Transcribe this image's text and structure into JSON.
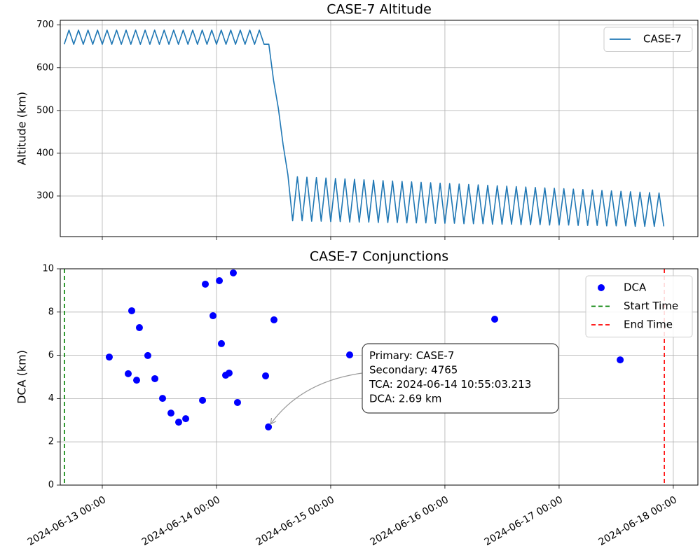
{
  "chart_data": [
    {
      "type": "line",
      "title": "CASE-7 Altitude",
      "y_label": "Altitude (km)",
      "x": [
        "2024-06-12 16:00",
        "2024-06-12 17:00",
        "2024-06-12 18:00",
        "2024-06-12 19:00",
        "2024-06-12 20:00",
        "2024-06-12 21:00",
        "2024-06-12 22:00",
        "2024-06-12 23:00",
        "2024-06-13 00:00",
        "2024-06-13 01:00",
        "2024-06-13 02:00",
        "2024-06-13 03:00",
        "2024-06-13 04:00",
        "2024-06-13 05:00",
        "2024-06-13 06:00",
        "2024-06-13 07:00",
        "2024-06-13 08:00",
        "2024-06-13 09:00",
        "2024-06-13 10:00",
        "2024-06-13 11:00",
        "2024-06-13 12:00",
        "2024-06-13 13:00",
        "2024-06-13 14:00",
        "2024-06-13 15:00",
        "2024-06-13 16:00",
        "2024-06-13 17:00",
        "2024-06-13 18:00",
        "2024-06-13 19:00",
        "2024-06-13 20:00",
        "2024-06-13 21:00",
        "2024-06-13 22:00",
        "2024-06-13 23:00",
        "2024-06-14 00:00",
        "2024-06-14 01:00",
        "2024-06-14 02:00",
        "2024-06-14 03:00",
        "2024-06-14 04:00",
        "2024-06-14 05:00",
        "2024-06-14 06:00",
        "2024-06-14 07:00",
        "2024-06-14 08:00",
        "2024-06-14 09:00",
        "2024-06-14 10:00",
        "2024-06-14 11:00",
        "2024-06-14 12:00",
        "2024-06-14 13:00",
        "2024-06-14 14:00",
        "2024-06-14 15:00",
        "2024-06-14 16:00",
        "2024-06-14 17:00",
        "2024-06-14 18:00",
        "2024-06-14 19:00",
        "2024-06-14 20:00",
        "2024-06-14 21:00",
        "2024-06-14 22:00",
        "2024-06-14 23:00",
        "2024-06-15 00:00",
        "2024-06-15 01:00",
        "2024-06-15 02:00",
        "2024-06-15 03:00",
        "2024-06-15 04:00",
        "2024-06-15 05:00",
        "2024-06-15 06:00",
        "2024-06-15 07:00",
        "2024-06-15 08:00",
        "2024-06-15 09:00",
        "2024-06-15 10:00",
        "2024-06-15 11:00",
        "2024-06-15 12:00",
        "2024-06-15 13:00",
        "2024-06-15 14:00",
        "2024-06-15 15:00",
        "2024-06-15 16:00",
        "2024-06-15 17:00",
        "2024-06-15 18:00",
        "2024-06-15 19:00",
        "2024-06-15 20:00",
        "2024-06-15 21:00",
        "2024-06-15 22:00",
        "2024-06-15 23:00",
        "2024-06-16 00:00",
        "2024-06-16 01:00",
        "2024-06-16 02:00",
        "2024-06-16 03:00",
        "2024-06-16 04:00",
        "2024-06-16 05:00",
        "2024-06-16 06:00",
        "2024-06-16 07:00",
        "2024-06-16 08:00",
        "2024-06-16 09:00",
        "2024-06-16 10:00",
        "2024-06-16 11:00",
        "2024-06-16 12:00",
        "2024-06-16 13:00",
        "2024-06-16 14:00",
        "2024-06-16 15:00",
        "2024-06-16 16:00",
        "2024-06-16 17:00",
        "2024-06-16 18:00",
        "2024-06-16 19:00",
        "2024-06-16 20:00",
        "2024-06-16 21:00",
        "2024-06-16 22:00",
        "2024-06-16 23:00",
        "2024-06-17 00:00",
        "2024-06-17 01:00",
        "2024-06-17 02:00",
        "2024-06-17 03:00",
        "2024-06-17 04:00",
        "2024-06-17 05:00",
        "2024-06-17 06:00",
        "2024-06-17 07:00",
        "2024-06-17 08:00",
        "2024-06-17 09:00",
        "2024-06-17 10:00",
        "2024-06-17 11:00",
        "2024-06-17 12:00",
        "2024-06-17 13:00",
        "2024-06-17 14:00",
        "2024-06-17 15:00",
        "2024-06-17 16:00",
        "2024-06-17 17:00",
        "2024-06-17 18:00",
        "2024-06-17 19:00",
        "2024-06-17 20:00",
        "2024-06-17 21:00",
        "2024-06-17 22:00"
      ],
      "series": [
        {
          "name": "CASE-7",
          "color": "#1f77b4",
          "values": [
            655,
            688,
            655,
            688,
            655,
            688,
            655,
            688,
            655,
            688,
            655,
            688,
            655,
            688,
            655,
            688,
            655,
            688,
            655,
            688,
            655,
            688,
            655,
            688,
            655,
            688,
            655,
            688,
            655,
            688,
            655,
            688,
            655,
            688,
            655,
            688,
            655,
            688,
            655,
            688,
            655,
            688,
            655,
            655,
            570,
            505,
            420,
            350,
            242,
            345,
            242,
            344,
            241,
            343,
            241,
            342,
            240,
            341,
            240,
            340,
            239,
            339,
            239,
            338,
            239,
            337,
            238,
            336,
            238,
            335,
            238,
            334,
            237,
            333,
            237,
            332,
            237,
            331,
            236,
            330,
            236,
            329,
            236,
            328,
            235,
            327,
            235,
            326,
            235,
            325,
            234,
            324,
            234,
            323,
            234,
            322,
            233,
            321,
            233,
            320,
            233,
            319,
            232,
            318,
            232,
            317,
            232,
            316,
            231,
            315,
            231,
            314,
            231,
            313,
            230,
            312,
            230,
            311,
            230,
            310,
            229,
            309,
            229,
            308,
            229,
            307,
            229
          ]
        }
      ],
      "xlim": [
        "2024-06-12 15:10",
        "2024-06-18 05:10"
      ],
      "ylim": [
        205,
        711
      ],
      "yticks": [
        300,
        400,
        500,
        600,
        700
      ],
      "grid": true,
      "legend": "upper right"
    },
    {
      "type": "scatter",
      "title": "CASE-7 Conjunctions",
      "y_label": "DCA (km)",
      "series": [
        {
          "name": "DCA",
          "color": "#0000ff",
          "x": [
            "2024-06-13 01:28",
            "2024-06-13 05:27",
            "2024-06-13 06:11",
            "2024-06-13 07:13",
            "2024-06-13 07:48",
            "2024-06-13 09:34",
            "2024-06-13 11:03",
            "2024-06-13 12:40",
            "2024-06-13 14:26",
            "2024-06-13 16:03",
            "2024-06-13 17:32",
            "2024-06-13 21:04",
            "2024-06-13 21:39",
            "2024-06-13 23:16",
            "2024-06-14 00:36",
            "2024-06-14 01:02",
            "2024-06-14 01:55",
            "2024-06-14 02:39",
            "2024-06-14 03:32",
            "2024-06-14 04:25",
            "2024-06-14 10:19",
            "2024-06-14 10:55",
            "2024-06-14 12:05",
            "2024-06-15 03:59",
            "2024-06-16 10:28",
            "2024-06-17 12:50"
          ],
          "values": [
            5.92,
            5.15,
            8.06,
            4.85,
            7.28,
            5.99,
            4.92,
            4.01,
            3.33,
            2.91,
            3.07,
            3.92,
            9.29,
            7.83,
            9.45,
            6.54,
            5.08,
            5.18,
            9.81,
            3.82,
            5.05,
            2.69,
            7.64,
            6.02,
            7.67,
            5.79
          ]
        }
      ],
      "vlines": [
        {
          "name": "Start Time",
          "x": "2024-06-12 16:03",
          "color": "#008000"
        },
        {
          "name": "End Time",
          "x": "2024-06-17 22:07",
          "color": "#ff0000"
        }
      ],
      "annotation": {
        "lines": [
          "Primary: CASE-7",
          "Secondary: 4765",
          "TCA: 2024-06-14 10:55:03.213",
          "DCA: 2.69 km"
        ]
      },
      "xlim": [
        "2024-06-12 15:10",
        "2024-06-18 05:10"
      ],
      "xticks": [
        "2024-06-13 00:00",
        "2024-06-14 00:00",
        "2024-06-15 00:00",
        "2024-06-16 00:00",
        "2024-06-17 00:00",
        "2024-06-18 00:00"
      ],
      "ylim": [
        0,
        10
      ],
      "yticks": [
        0,
        2,
        4,
        6,
        8,
        10
      ],
      "grid": true,
      "legend": "upper right"
    }
  ]
}
